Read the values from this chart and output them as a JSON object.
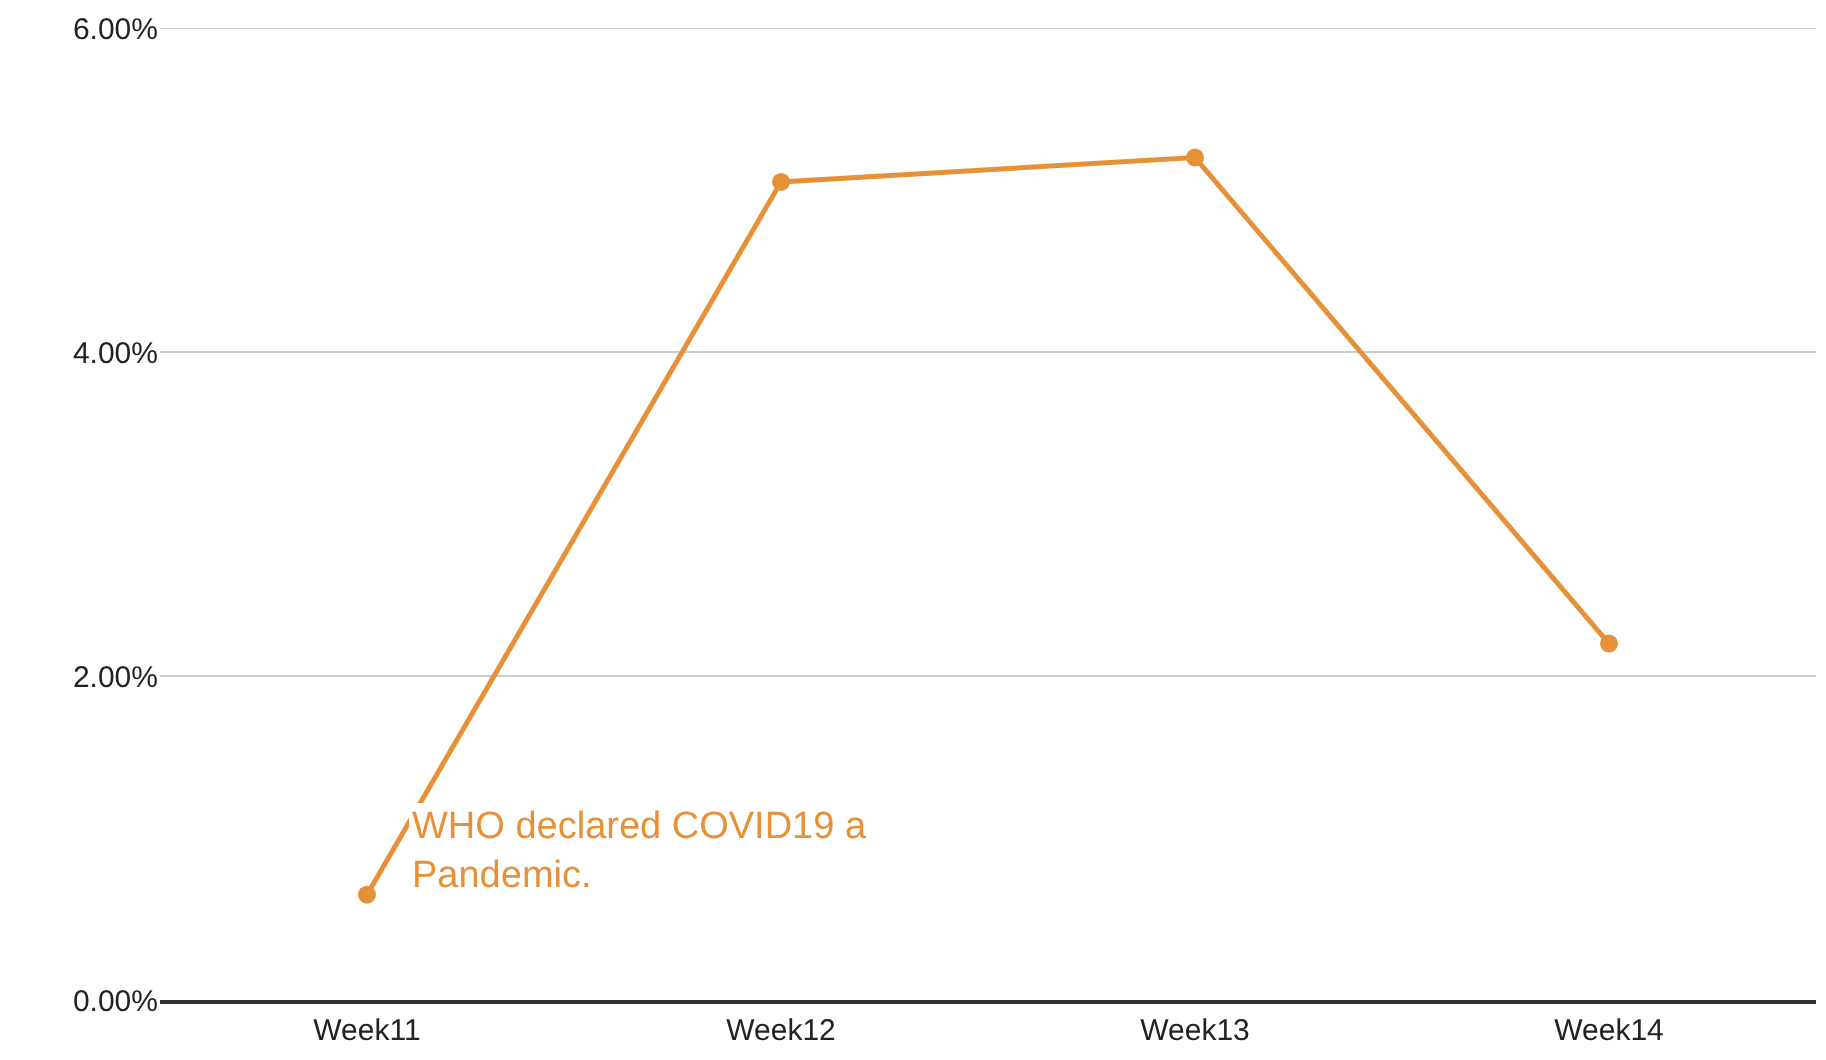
{
  "chart_data": {
    "type": "line",
    "categories": [
      "Week11",
      "Week12",
      "Week13",
      "Week14"
    ],
    "series": [
      {
        "color": "#e69138",
        "values": [
          0.65,
          5.05,
          5.2,
          2.2
        ]
      }
    ],
    "ylim": [
      0,
      6
    ],
    "yticks": [
      {
        "value": 0,
        "label": "0.00%"
      },
      {
        "value": 2,
        "label": "2.00%"
      },
      {
        "value": 4,
        "label": "4.00%"
      },
      {
        "value": 6,
        "label": "6.00%"
      }
    ],
    "grid": "y",
    "marker": "circle",
    "line_style": "solid",
    "annotations": [
      {
        "text": "WHO declared COVID19 a\nPandemic.",
        "x": "Week11",
        "y": 0.65
      }
    ]
  }
}
